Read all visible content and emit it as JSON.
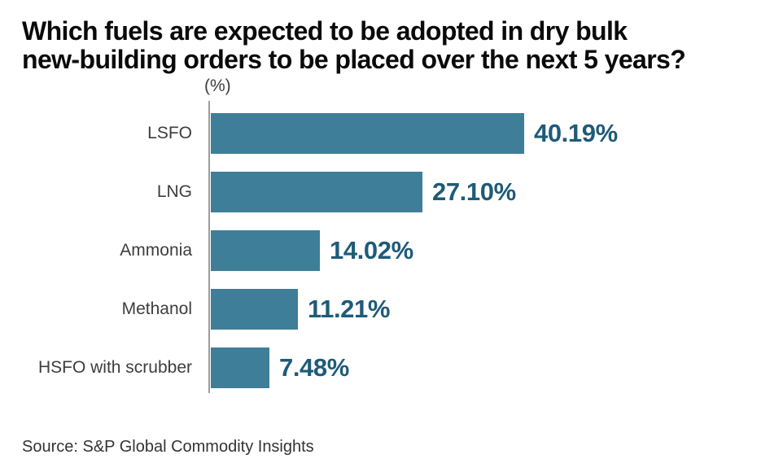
{
  "title_line1": "Which fuels are expected to be adopted in dry bulk",
  "title_line2": "new-building orders to be placed over the next 5 years?",
  "chart_data": {
    "type": "bar",
    "orientation": "horizontal",
    "title": "Which fuels are expected to be adopted in dry bulk new-building orders to be placed over the next 5 years?",
    "unit_label": "(%)",
    "categories": [
      "LSFO",
      "LNG",
      "Ammonia",
      "Methanol",
      "HSFO with scrubber"
    ],
    "values": [
      40.19,
      27.1,
      14.02,
      11.21,
      7.48
    ],
    "value_labels": [
      "40.19%",
      "27.10%",
      "14.02%",
      "11.21%",
      "7.48%"
    ],
    "xlim": [
      0,
      42
    ],
    "grid": false,
    "legend": false,
    "bar_color": "#3f7e99",
    "value_label_color": "#1e5b78",
    "category_label_color": "#3d3d3d",
    "axis_color": "#9c9c9c"
  },
  "source": {
    "label": "Source: S&P Global Commodity Insights"
  }
}
